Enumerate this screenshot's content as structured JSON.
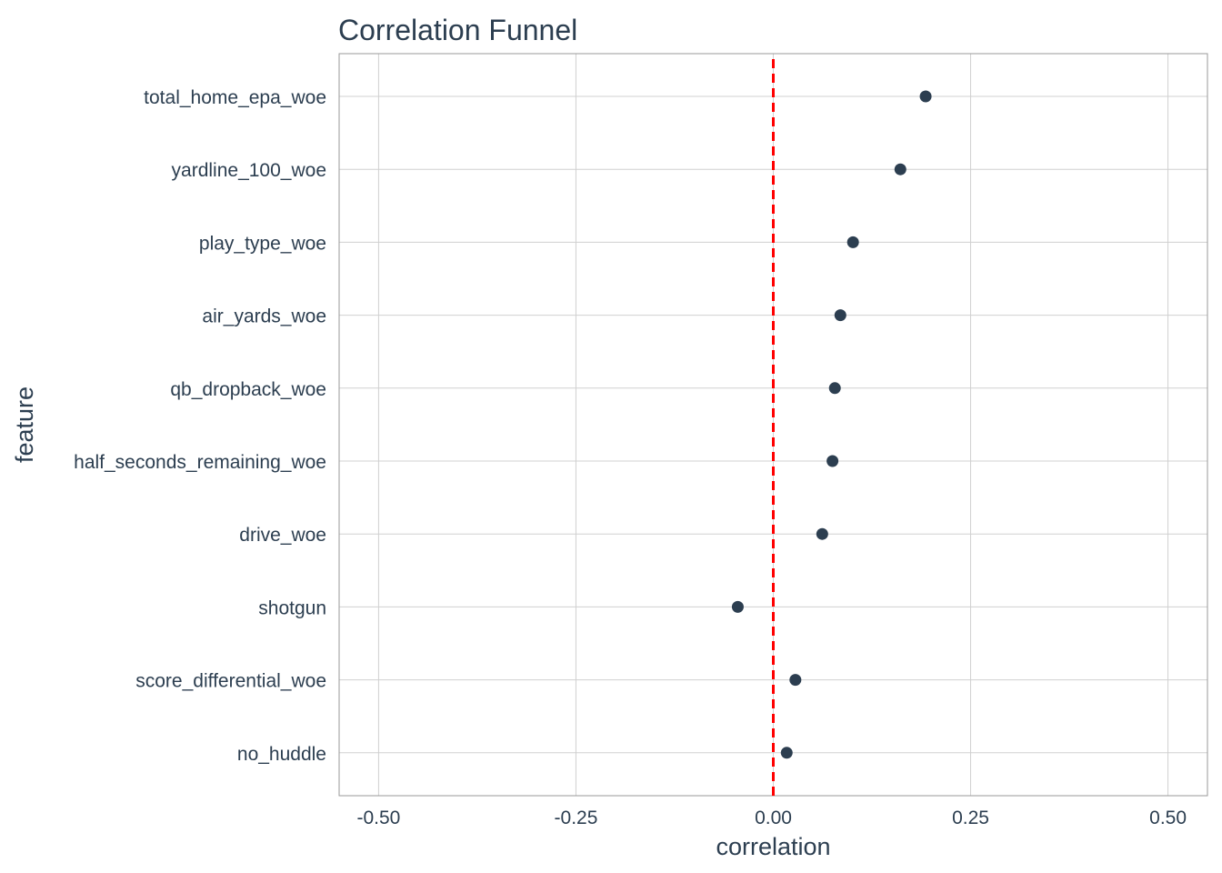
{
  "chart_data": {
    "type": "scatter",
    "title": "Correlation Funnel",
    "xlabel": "correlation",
    "ylabel": "feature",
    "xlim": [
      -0.55,
      0.55
    ],
    "x_ticks": [
      -0.5,
      -0.25,
      0,
      0.25,
      0.5
    ],
    "x_tick_labels": [
      "-0.50",
      "-0.25",
      "0.00",
      "0.25",
      "0.50"
    ],
    "grid": true,
    "reference_line": {
      "x": 0,
      "style": "dashed",
      "color": "#ff0000"
    },
    "point_color": "#2c3e50",
    "features": [
      "total_home_epa_woe",
      "yardline_100_woe",
      "play_type_woe",
      "air_yards_woe",
      "qb_dropback_woe",
      "half_seconds_remaining_woe",
      "drive_woe",
      "shotgun",
      "score_differential_woe",
      "no_huddle"
    ],
    "values": [
      0.193,
      0.161,
      0.101,
      0.085,
      0.078,
      0.075,
      0.062,
      -0.045,
      0.028,
      0.017
    ]
  }
}
